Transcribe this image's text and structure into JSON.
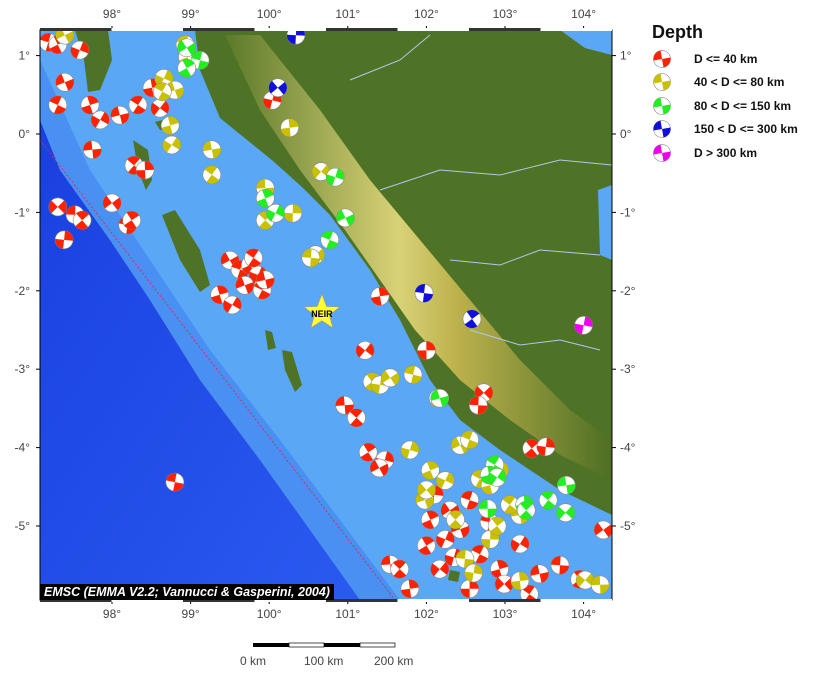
{
  "map": {
    "lon_ticks": [
      "98°",
      "99°",
      "100°",
      "101°",
      "102°",
      "103°",
      "104°"
    ],
    "lat_ticks": [
      "1°",
      "0°",
      "-1°",
      "-2°",
      "-3°",
      "-4°",
      "-5°"
    ],
    "lon_values": [
      98,
      99,
      100,
      101,
      102,
      103,
      104
    ],
    "lat_values": [
      1,
      0,
      -1,
      -2,
      -3,
      -4,
      -5
    ],
    "extent": {
      "lon": [
        97.15,
        104.35
      ],
      "lat": [
        1.32,
        -5.9
      ]
    },
    "station": {
      "label": "NEIR",
      "lon": 100.67,
      "lat": -2.28,
      "color": "#ffff33"
    },
    "credit": "EMSC (EMMA V2.2; Vannucci & Gasperini, 2004)",
    "scale_bar": {
      "labels": [
        "0 km",
        "100 km",
        "200 km"
      ]
    }
  },
  "legend": {
    "title": "Depth",
    "items": [
      {
        "key": "shallow",
        "label": "D <= 40 km",
        "color": "#ff2200"
      },
      {
        "key": "mid",
        "label": "40 < D <= 80 km",
        "color": "#c8c000"
      },
      {
        "key": "inter",
        "label": "80 < D <= 150 km",
        "color": "#22ee22"
      },
      {
        "key": "deep",
        "label": "150 < D <= 300 km",
        "color": "#1010dd"
      },
      {
        "key": "vdeep",
        "label": "D > 300 km",
        "color": "#ee00ee"
      }
    ]
  },
  "events": {
    "shallow": [
      [
        97.19,
        1.17
      ],
      [
        97.31,
        1.14
      ],
      [
        97.59,
        1.07
      ],
      [
        97.4,
        0.66
      ],
      [
        97.31,
        0.37
      ],
      [
        97.72,
        0.37
      ],
      [
        97.85,
        0.18
      ],
      [
        98.1,
        0.24
      ],
      [
        98.33,
        0.37
      ],
      [
        98.51,
        0.59
      ],
      [
        98.61,
        0.33
      ],
      [
        97.75,
        -0.2
      ],
      [
        98.28,
        -0.4
      ],
      [
        98.42,
        -0.46
      ],
      [
        97.31,
        -0.93
      ],
      [
        97.53,
        -1.03
      ],
      [
        97.62,
        -1.1
      ],
      [
        97.39,
        -1.35
      ],
      [
        98.0,
        -0.88
      ],
      [
        98.2,
        -1.16
      ],
      [
        98.25,
        -1.1
      ],
      [
        100.04,
        0.43
      ],
      [
        99.5,
        -1.61
      ],
      [
        99.63,
        -1.73
      ],
      [
        99.76,
        -1.67
      ],
      [
        99.86,
        -1.8
      ],
      [
        99.69,
        -1.93
      ],
      [
        99.91,
        -1.99
      ],
      [
        99.37,
        -2.05
      ],
      [
        99.53,
        -2.18
      ],
      [
        99.95,
        -1.86
      ],
      [
        99.8,
        -1.58
      ],
      [
        101.41,
        -2.07
      ],
      [
        101.22,
        -2.76
      ],
      [
        100.96,
        -3.46
      ],
      [
        101.11,
        -3.62
      ],
      [
        102.0,
        -2.76
      ],
      [
        102.73,
        -3.3
      ],
      [
        102.66,
        -3.46
      ],
      [
        103.34,
        -4.01
      ],
      [
        103.52,
        -3.99
      ],
      [
        104.25,
        -5.05
      ],
      [
        98.8,
        -4.44
      ],
      [
        101.26,
        -4.06
      ],
      [
        101.47,
        -4.16
      ],
      [
        101.4,
        -4.26
      ],
      [
        102.55,
        -4.67
      ],
      [
        102.05,
        -4.92
      ],
      [
        102.24,
        -5.17
      ],
      [
        102.43,
        -5.04
      ],
      [
        102.68,
        -5.36
      ],
      [
        102.93,
        -5.55
      ],
      [
        103.19,
        -5.23
      ],
      [
        103.44,
        -5.61
      ],
      [
        103.31,
        -5.87
      ],
      [
        101.79,
        -5.8
      ],
      [
        102.17,
        -5.55
      ],
      [
        101.54,
        -5.49
      ],
      [
        101.66,
        -5.55
      ],
      [
        102.55,
        -5.8
      ],
      [
        102.99,
        -5.74
      ],
      [
        103.7,
        -5.5
      ],
      [
        103.95,
        -5.68
      ],
      [
        102.1,
        -4.6
      ],
      [
        102.3,
        -4.8
      ],
      [
        102.8,
        -4.95
      ],
      [
        102.0,
        -5.25
      ],
      [
        102.35,
        -5.4
      ]
    ],
    "mid": [
      [
        97.4,
        1.26
      ],
      [
        98.93,
        1.14
      ],
      [
        98.96,
        0.98
      ],
      [
        98.66,
        0.71
      ],
      [
        98.8,
        0.56
      ],
      [
        98.64,
        0.54
      ],
      [
        98.74,
        0.11
      ],
      [
        98.76,
        -0.14
      ],
      [
        99.27,
        -0.2
      ],
      [
        99.27,
        -0.52
      ],
      [
        100.26,
        0.08
      ],
      [
        100.66,
        -0.48
      ],
      [
        99.95,
        -0.69
      ],
      [
        99.95,
        -1.1
      ],
      [
        100.3,
        -1.01
      ],
      [
        100.59,
        -1.54
      ],
      [
        100.53,
        -1.58
      ],
      [
        101.31,
        -3.16
      ],
      [
        101.41,
        -3.2
      ],
      [
        101.54,
        -3.11
      ],
      [
        101.83,
        -3.07
      ],
      [
        102.15,
        -3.37
      ],
      [
        101.79,
        -4.03
      ],
      [
        102.43,
        -3.97
      ],
      [
        102.55,
        -3.9
      ],
      [
        102.05,
        -4.29
      ],
      [
        102.24,
        -4.42
      ],
      [
        101.98,
        -4.67
      ],
      [
        102.68,
        -4.4
      ],
      [
        102.81,
        -4.48
      ],
      [
        102.93,
        -4.29
      ],
      [
        103.19,
        -4.86
      ],
      [
        103.06,
        -4.73
      ],
      [
        103.19,
        -5.7
      ],
      [
        104.02,
        -5.69
      ],
      [
        104.21,
        -5.75
      ],
      [
        102.37,
        -4.92
      ],
      [
        102.81,
        -5.17
      ],
      [
        102.0,
        -4.54
      ],
      [
        102.49,
        -5.42
      ],
      [
        102.9,
        -5.0
      ],
      [
        102.6,
        -5.6
      ]
    ],
    "inter": [
      [
        98.95,
        1.1
      ],
      [
        99.12,
        0.94
      ],
      [
        98.95,
        0.84
      ],
      [
        100.84,
        -0.55
      ],
      [
        100.97,
        -1.07
      ],
      [
        100.77,
        -1.35
      ],
      [
        99.95,
        -0.82
      ],
      [
        100.08,
        -1.01
      ],
      [
        102.17,
        -3.37
      ],
      [
        102.87,
        -4.22
      ],
      [
        102.8,
        -4.35
      ],
      [
        102.9,
        -4.38
      ],
      [
        103.78,
        -4.48
      ],
      [
        103.55,
        -4.67
      ],
      [
        103.25,
        -4.73
      ],
      [
        103.77,
        -4.83
      ],
      [
        102.78,
        -4.78
      ],
      [
        103.27,
        -4.8
      ]
    ],
    "deep": [
      [
        100.34,
        1.26
      ],
      [
        100.11,
        0.59
      ],
      [
        101.97,
        -2.03
      ],
      [
        102.58,
        -2.36
      ]
    ],
    "vdeep": [
      [
        104.0,
        -2.44
      ]
    ]
  }
}
